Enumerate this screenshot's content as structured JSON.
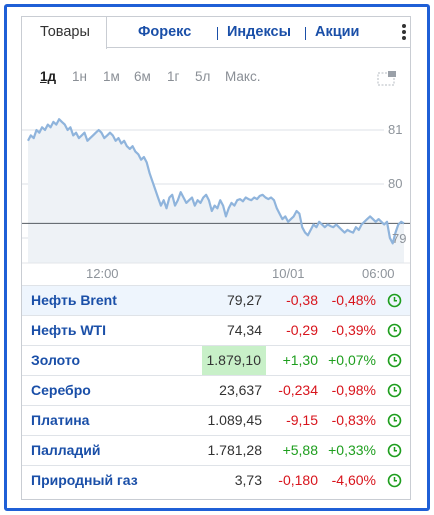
{
  "tabs": [
    {
      "label": "Товары",
      "active": true
    },
    {
      "label": "Форекс",
      "active": false
    },
    {
      "label": "Индексы",
      "active": false
    },
    {
      "label": "Акции",
      "active": false
    }
  ],
  "menu_icon": "kebab-menu-icon",
  "periods": [
    "1д",
    "1н",
    "1м",
    "6м",
    "1г",
    "5л",
    "Макс."
  ],
  "active_period": "1д",
  "expand_icon": "expand-chart-icon",
  "colors": {
    "accent": "#1a4fa8",
    "line": "#8fb4dc",
    "area": "#eef2f6",
    "negative": "#d8141c",
    "positive": "#1e9e1e",
    "flash": "#c8f0c8",
    "frame": "#1f5fd6"
  },
  "chart_data": {
    "type": "area",
    "y_ticks": [
      "81",
      "80",
      "79"
    ],
    "x_ticks": [
      "12:00",
      "10/01",
      "06:00"
    ],
    "ylim": [
      78.8,
      81.5
    ],
    "previous_close": 79.27,
    "series": [
      {
        "values": [
          80.8,
          80.9,
          80.85,
          81.0,
          80.95,
          81.05,
          81.0,
          81.1,
          81.05,
          81.15,
          81.1,
          81.2,
          81.15,
          81.1,
          81.0,
          81.05,
          80.9,
          80.95,
          80.85,
          80.9,
          80.95,
          80.8,
          80.85,
          80.9,
          80.95,
          81.0,
          80.95,
          80.85,
          80.9,
          80.95,
          80.9,
          80.8,
          80.85,
          80.75,
          80.8,
          80.7,
          80.65,
          80.7,
          80.6,
          80.55,
          80.45,
          80.5,
          80.4,
          80.2,
          80.05,
          79.9,
          79.75,
          79.6,
          79.7,
          79.55,
          79.75,
          79.8,
          79.6,
          79.7,
          79.85,
          79.75,
          79.65,
          79.7,
          79.75,
          79.6,
          79.7,
          79.65,
          79.75,
          79.8,
          79.7,
          79.5,
          79.6,
          79.55,
          79.7,
          79.6,
          79.4,
          79.55,
          79.65,
          79.6,
          79.7,
          79.72,
          79.68,
          79.75,
          79.72,
          79.7,
          79.75,
          79.72,
          79.78,
          79.8,
          79.75,
          79.72,
          79.75,
          79.7,
          79.55,
          79.45,
          79.35,
          79.4,
          79.3,
          79.35,
          79.4,
          79.5,
          79.45,
          79.2,
          79.1,
          79.05,
          79.15,
          79.25,
          79.2,
          79.3,
          79.25,
          79.2,
          79.25,
          79.22,
          79.2,
          79.25,
          79.2,
          79.15,
          79.1,
          79.15,
          79.12,
          79.1,
          79.2,
          79.15,
          79.25,
          79.3,
          79.35,
          79.4,
          79.35,
          79.3,
          79.35,
          79.3,
          79.25,
          79.3,
          79.0,
          78.9,
          79.1,
          79.25,
          79.3,
          79.27
        ]
      }
    ]
  },
  "rows": [
    {
      "name": "Нефть Brent",
      "price": "79,27",
      "change": "-0,38",
      "percent": "-0,48%",
      "change_sign": "neg",
      "highlight": true,
      "flash": false
    },
    {
      "name": "Нефть WTI",
      "price": "74,34",
      "change": "-0,29",
      "percent": "-0,39%",
      "change_sign": "neg",
      "highlight": false,
      "flash": false
    },
    {
      "name": "Золото",
      "price": "1.879,10",
      "change": "+1,30",
      "percent": "+0,07%",
      "change_sign": "pos",
      "highlight": false,
      "flash": true
    },
    {
      "name": "Серебро",
      "price": "23,637",
      "change": "-0,234",
      "percent": "-0,98%",
      "change_sign": "neg",
      "highlight": false,
      "flash": false
    },
    {
      "name": "Платина",
      "price": "1.089,45",
      "change": "-9,15",
      "percent": "-0,83%",
      "change_sign": "neg",
      "highlight": false,
      "flash": false
    },
    {
      "name": "Палладий",
      "price": "1.781,28",
      "change": "+5,88",
      "percent": "+0,33%",
      "change_sign": "pos",
      "highlight": false,
      "flash": false
    },
    {
      "name": "Природный газ",
      "price": "3,73",
      "change": "-0,180",
      "percent": "-4,60%",
      "change_sign": "neg",
      "highlight": false,
      "flash": false
    }
  ],
  "row_icon": "clock-icon"
}
